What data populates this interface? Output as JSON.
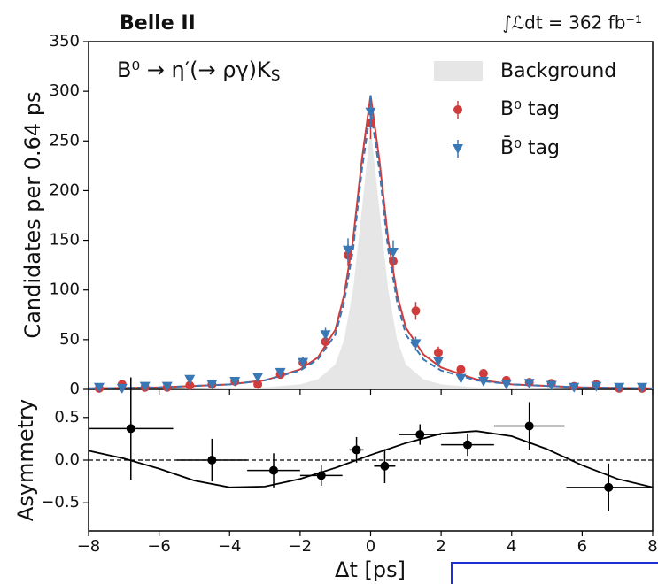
{
  "chart_data": [
    {
      "type": "tagged-dt",
      "experiment": "Belle II",
      "luminosity": "∫ℒdt = 362 fb⁻¹",
      "decay": {
        "text": "B⁰ → η′(→ ργ)K",
        "sub": "S"
      },
      "ylabel": "Candidates per 0.64 ps",
      "xlim": [
        -8,
        8
      ],
      "ylim": [
        0,
        350
      ],
      "xticks": [
        {
          "value": -8,
          "label": "−8"
        },
        {
          "value": -6,
          "label": "−6"
        },
        {
          "value": -4,
          "label": "−4"
        },
        {
          "value": -2,
          "label": "−2"
        },
        0,
        2,
        4,
        6,
        8
      ],
      "yticks": [
        0,
        50,
        100,
        150,
        200,
        250,
        300,
        350
      ],
      "legend": "upper right",
      "x": [
        -7.7,
        -7.05,
        -6.4,
        -5.77,
        -5.13,
        -4.5,
        -3.85,
        -3.2,
        -2.56,
        -1.92,
        -1.28,
        -0.64,
        0,
        0.64,
        1.28,
        1.92,
        2.56,
        3.2,
        3.85,
        4.5,
        5.13,
        5.77,
        6.4,
        7.05,
        7.7
      ],
      "series": [
        {
          "name": "B⁰ tag",
          "color": "#d03c3c",
          "marker": "circle",
          "values": [
            1,
            5,
            2,
            2,
            4,
            5,
            8,
            5,
            15,
            27,
            48,
            135,
            268,
            129,
            79,
            37,
            20,
            16,
            9,
            7,
            6,
            3,
            5,
            1,
            1
          ],
          "errors": [
            1,
            2,
            1.5,
            1.5,
            2,
            2,
            3,
            2,
            4,
            5,
            7,
            11,
            16,
            11,
            9,
            6,
            4,
            4,
            3,
            3,
            2,
            2,
            2,
            1,
            1
          ]
        },
        {
          "name": "B̄⁰ tag",
          "color": "#3a78b5",
          "marker": "triangle-down",
          "values": [
            2,
            1,
            3,
            3,
            10,
            5,
            8,
            12,
            17,
            27,
            55,
            140,
            279,
            138,
            46,
            28,
            11,
            8,
            5,
            6,
            4,
            2,
            3,
            2,
            2
          ],
          "errors": [
            1.5,
            1,
            2,
            2,
            3,
            2,
            3,
            3,
            4,
            5,
            7,
            12,
            17,
            12,
            7,
            5,
            3,
            3,
            2,
            2,
            2,
            1.5,
            2,
            1.5,
            1.5
          ]
        }
      ],
      "curve_x": [
        -8,
        -6,
        -4,
        -3,
        -2,
        -1.5,
        -1,
        -0.75,
        -0.5,
        -0.25,
        0,
        0.25,
        0.5,
        0.75,
        1,
        1.5,
        2,
        3,
        4,
        6,
        8
      ],
      "background": {
        "name": "Background",
        "color": "#e6e6e6",
        "values": [
          0,
          0,
          1,
          2,
          5,
          10,
          25,
          50,
          100,
          180,
          265,
          180,
          100,
          50,
          25,
          10,
          5,
          2,
          1,
          0,
          0
        ]
      },
      "fit_curves": [
        {
          "color": "#d03c3c",
          "dashed": false,
          "values": [
            1,
            2,
            5,
            9,
            20,
            32,
            60,
            95,
            150,
            230,
            296,
            230,
            150,
            95,
            62,
            35,
            22,
            10,
            5,
            2,
            1
          ]
        },
        {
          "color": "#3a78b5",
          "dashed": true,
          "values": [
            1,
            2,
            5,
            9,
            19,
            30,
            55,
            88,
            140,
            220,
            282,
            220,
            140,
            88,
            55,
            30,
            19,
            9,
            5,
            2,
            1
          ]
        }
      ]
    },
    {
      "type": "asymmetry",
      "ylabel": "Asymmetry",
      "xlabel": "Δt [ps]",
      "xlim": [
        -8,
        8
      ],
      "ylim": [
        -0.83,
        0.83
      ],
      "xticks": [
        {
          "value": -8,
          "label": "−8"
        },
        {
          "value": -6,
          "label": "−6"
        },
        {
          "value": -4,
          "label": "−4"
        },
        {
          "value": -2,
          "label": "−2"
        },
        0,
        2,
        4,
        6,
        8
      ],
      "yticks": [
        {
          "value": -0.5,
          "label": "−0.5"
        },
        {
          "value": 0,
          "label": "0.0"
        },
        {
          "value": 0.5,
          "label": "0.5"
        }
      ],
      "color": "#000000",
      "x": [
        -6.8,
        -4.5,
        -2.75,
        -1.4,
        -0.4,
        0.4,
        1.4,
        2.75,
        4.5,
        6.75
      ],
      "xerr": [
        1.2,
        1.0,
        0.75,
        0.6,
        0.2,
        0.3,
        0.6,
        0.75,
        1.0,
        1.2
      ],
      "values": [
        0.37,
        0.0,
        -0.12,
        -0.18,
        0.12,
        -0.07,
        0.3,
        0.18,
        0.4,
        -0.32
      ],
      "errors": [
        0.6,
        0.25,
        0.2,
        0.12,
        0.15,
        0.2,
        0.12,
        0.13,
        0.28,
        0.28
      ],
      "reference": 0,
      "curve_x": [
        -8,
        -7,
        -6,
        -5,
        -4,
        -3,
        -2,
        -1,
        0,
        1,
        2,
        3,
        4,
        5,
        6,
        7,
        8
      ],
      "curve_values": [
        0.11,
        0.02,
        -0.1,
        -0.24,
        -0.32,
        -0.31,
        -0.22,
        -0.09,
        0.06,
        0.2,
        0.31,
        0.34,
        0.28,
        0.13,
        -0.06,
        -0.22,
        -0.32
      ]
    }
  ]
}
